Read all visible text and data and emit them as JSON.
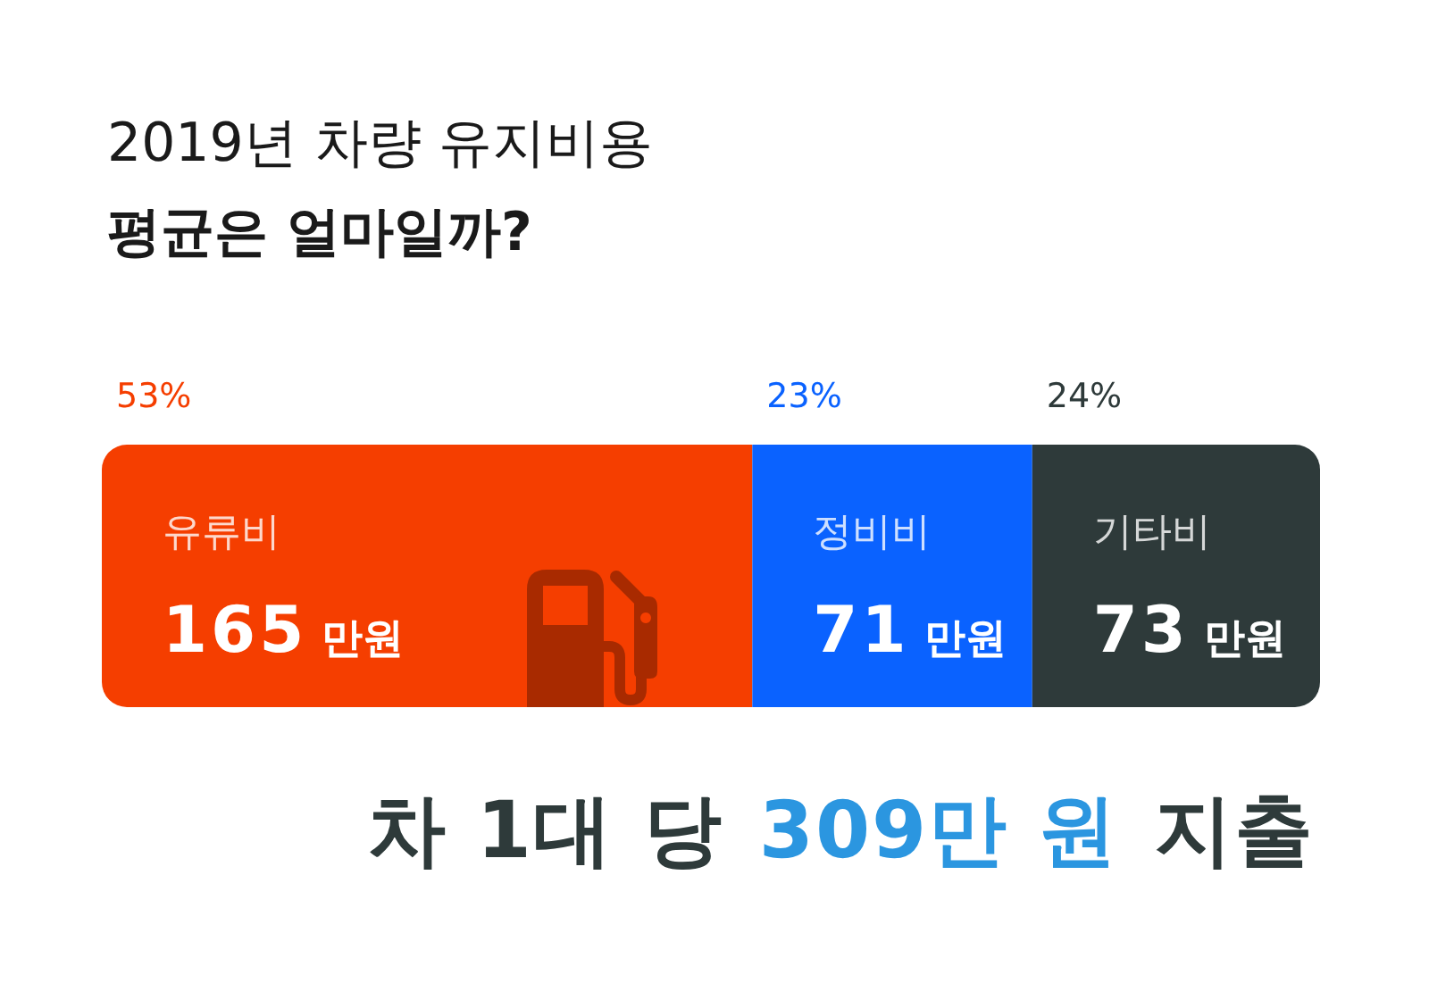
{
  "chart_data": {
    "type": "bar",
    "title": "2019년 차량 유지비용",
    "subtitle": "평균은 얼마일까?",
    "orientation": "horizontal",
    "stacked": true,
    "categories": [
      null
    ],
    "legend": false,
    "tick_labels": false,
    "series": [
      {
        "name": "유류비",
        "color": "#f53e00",
        "values": [
          165
        ],
        "value_labels": [
          "165 만원"
        ]
      },
      {
        "name": "정비비",
        "color": "#0a62ff",
        "values": [
          71
        ],
        "value_labels": [
          "71 만원"
        ]
      },
      {
        "name": "기타비",
        "color": "#2e3a3a",
        "values": [
          73
        ],
        "value_labels": [
          "73 만원"
        ]
      }
    ],
    "annotations": [
      "53%",
      "23%",
      "24%",
      "차 1대 당",
      "309만 원",
      "지출"
    ]
  }
}
